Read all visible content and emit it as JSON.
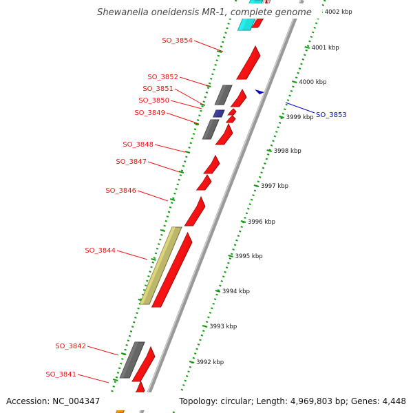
{
  "header": {
    "title": "Shewanella oneidensis MR-1, complete genome"
  },
  "footer": {
    "accession": "Accession: NC_004347",
    "topology": "Topology: circular; Length: 4,969,803 bp; Genes: 4,448"
  },
  "colors": {
    "forward_gene": "#ee1111",
    "gray_feature": "#666666",
    "navy_feature": "#3a3a8c",
    "khaki_feature": "#bdb76b",
    "cyan_feature": "#22dddd",
    "orange_feature": "#ff8800",
    "reverse_gene": "#0000cc",
    "kbp_dots": "#119911",
    "backbone": "#999999"
  },
  "scale_labels": [
    "4002 kbp",
    "4001 kbp",
    "4000 kbp",
    "3999 kbp",
    "3998 kbp",
    "3997 kbp",
    "3996 kbp",
    "3995 kbp",
    "3994 kbp",
    "3993 kbp",
    "3992 kbp"
  ],
  "gene_labels": [
    {
      "name": "SO_3854",
      "color": "#ee1111"
    },
    {
      "name": "SO_3852",
      "color": "#ee1111"
    },
    {
      "name": "SO_3851",
      "color": "#ee1111"
    },
    {
      "name": "SO_3850",
      "color": "#ee1111"
    },
    {
      "name": "SO_3849",
      "color": "#ee1111"
    },
    {
      "name": "SO_3848",
      "color": "#ee1111"
    },
    {
      "name": "SO_3847",
      "color": "#ee1111"
    },
    {
      "name": "SO_3846",
      "color": "#ee1111"
    },
    {
      "name": "SO_3844",
      "color": "#ee1111"
    },
    {
      "name": "SO_3842",
      "color": "#ee1111"
    },
    {
      "name": "SO_3841",
      "color": "#ee1111"
    },
    {
      "name": "SO_3853",
      "color": "#0000cc"
    }
  ]
}
